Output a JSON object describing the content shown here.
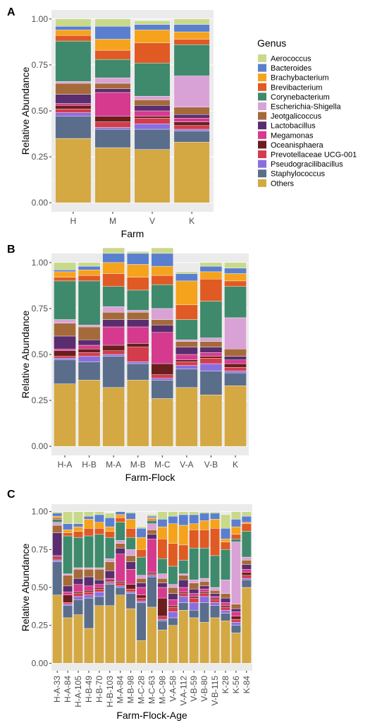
{
  "genera": [
    "Aerococcus",
    "Bacteroides",
    "Brachybacterium",
    "Brevibacterium",
    "Corynebacterium",
    "Escherichia-Shigella",
    "Jeotgalicoccus",
    "Lactobacillus",
    "Megamonas",
    "Oceanisphaera",
    "Prevotellaceae UCG-001",
    "Pseudogracilibacillus",
    "Staphylococcus",
    "Others"
  ],
  "colors": {
    "Aerococcus": "#c9d98a",
    "Bacteroides": "#5b7fcf",
    "Brachybacterium": "#f5a31c",
    "Brevibacterium": "#e05a24",
    "Corynebacterium": "#3f8a6c",
    "Escherichia-Shigella": "#d9a2d6",
    "Jeotgalicoccus": "#a56a3a",
    "Lactobacillus": "#5a2d6e",
    "Megamonas": "#d63a8f",
    "Oceanisphaera": "#6a1e1e",
    "Prevotellaceae UCG-001": "#d43c4c",
    "Pseudogracilibacillus": "#8a6ee0",
    "Staphylococcus": "#5a6e8c",
    "Others": "#d4a843"
  },
  "legend_title": "Genus",
  "chart_data": [
    {
      "panel": "A",
      "type": "bar",
      "stacked": true,
      "xlabel": "Farm",
      "ylabel": "Relative Abundance",
      "ylim": [
        0,
        1
      ],
      "yticks": [
        "0.00",
        "0.25",
        "0.50",
        "0.75",
        "1.00"
      ],
      "categories": [
        "H",
        "M",
        "V",
        "K"
      ],
      "series": [
        {
          "name": "Others",
          "values": [
            0.35,
            0.3,
            0.29,
            0.33
          ]
        },
        {
          "name": "Staphylococcus",
          "values": [
            0.12,
            0.1,
            0.11,
            0.06
          ]
        },
        {
          "name": "Pseudogracilibacillus",
          "values": [
            0.02,
            0.01,
            0.03,
            0.01
          ]
        },
        {
          "name": "Prevotellaceae UCG-001",
          "values": [
            0.02,
            0.03,
            0.03,
            0.02
          ]
        },
        {
          "name": "Oceanisphaera",
          "values": [
            0.02,
            0.03,
            0.01,
            0.02
          ]
        },
        {
          "name": "Megamonas",
          "values": [
            0.01,
            0.13,
            0.03,
            0.02
          ]
        },
        {
          "name": "Lactobacillus",
          "values": [
            0.05,
            0.02,
            0.03,
            0.02
          ]
        },
        {
          "name": "Jeotgalicoccus",
          "values": [
            0.06,
            0.03,
            0.03,
            0.04
          ]
        },
        {
          "name": "Escherichia-Shigella",
          "values": [
            0.01,
            0.03,
            0.02,
            0.17
          ]
        },
        {
          "name": "Corynebacterium",
          "values": [
            0.22,
            0.1,
            0.18,
            0.17
          ]
        },
        {
          "name": "Brevibacterium",
          "values": [
            0.03,
            0.05,
            0.11,
            0.03
          ]
        },
        {
          "name": "Brachybacterium",
          "values": [
            0.03,
            0.06,
            0.07,
            0.04
          ]
        },
        {
          "name": "Bacteroides",
          "values": [
            0.02,
            0.07,
            0.03,
            0.04
          ]
        },
        {
          "name": "Aerococcus",
          "values": [
            0.04,
            0.04,
            0.02,
            0.03
          ]
        }
      ]
    },
    {
      "panel": "B",
      "type": "bar",
      "stacked": true,
      "xlabel": "Farm-Flock",
      "ylabel": "Relative Abundance",
      "ylim": [
        0,
        1
      ],
      "yticks": [
        "0.00",
        "0.25",
        "0.50",
        "0.75",
        "1.00"
      ],
      "categories": [
        "H-A",
        "H-B",
        "M-A",
        "M-B",
        "M-C",
        "V-A",
        "V-B",
        "K"
      ],
      "series": [
        {
          "name": "Others",
          "values": [
            0.34,
            0.36,
            0.32,
            0.36,
            0.26,
            0.32,
            0.28,
            0.33
          ]
        },
        {
          "name": "Staphylococcus",
          "values": [
            0.13,
            0.1,
            0.17,
            0.09,
            0.1,
            0.1,
            0.13,
            0.07
          ]
        },
        {
          "name": "Pseudogracilibacillus",
          "values": [
            0.01,
            0.03,
            0.01,
            0.01,
            0.01,
            0.02,
            0.04,
            0.01
          ]
        },
        {
          "name": "Prevotellaceae UCG-001",
          "values": [
            0.01,
            0.02,
            0.02,
            0.08,
            0.02,
            0.02,
            0.03,
            0.02
          ]
        },
        {
          "name": "Oceanisphaera",
          "values": [
            0.03,
            0.02,
            0.03,
            0.02,
            0.06,
            0.01,
            0.01,
            0.02
          ]
        },
        {
          "name": "Megamonas",
          "values": [
            0.01,
            0.02,
            0.1,
            0.09,
            0.17,
            0.03,
            0.02,
            0.02
          ]
        },
        {
          "name": "Lactobacillus",
          "values": [
            0.07,
            0.03,
            0.04,
            0.04,
            0.04,
            0.04,
            0.03,
            0.02
          ]
        },
        {
          "name": "Jeotgalicoccus",
          "values": [
            0.07,
            0.07,
            0.04,
            0.04,
            0.03,
            0.03,
            0.03,
            0.04
          ]
        },
        {
          "name": "Escherichia-Shigella",
          "values": [
            0.02,
            0.01,
            0.03,
            0.01,
            0.06,
            0.01,
            0.02,
            0.17
          ]
        },
        {
          "name": "Corynebacterium",
          "values": [
            0.21,
            0.24,
            0.11,
            0.11,
            0.13,
            0.11,
            0.2,
            0.17
          ]
        },
        {
          "name": "Brevibacterium",
          "values": [
            0.02,
            0.03,
            0.07,
            0.07,
            0.05,
            0.08,
            0.12,
            0.03
          ]
        },
        {
          "name": "Brachybacterium",
          "values": [
            0.03,
            0.03,
            0.06,
            0.07,
            0.05,
            0.13,
            0.04,
            0.04
          ]
        },
        {
          "name": "Bacteroides",
          "values": [
            0.01,
            0.02,
            0.05,
            0.06,
            0.07,
            0.04,
            0.03,
            0.03
          ]
        },
        {
          "name": "Aerococcus",
          "values": [
            0.04,
            0.02,
            0.03,
            0.01,
            0.03,
            0.01,
            0.02,
            0.03
          ]
        }
      ]
    },
    {
      "panel": "C",
      "type": "bar",
      "stacked": true,
      "xlabel": "Farm-Flock-Age",
      "ylabel": "Relative Abundance",
      "ylim": [
        0,
        1
      ],
      "yticks": [
        "0.00",
        "0.25",
        "0.50",
        "0.75",
        "1.00"
      ],
      "categories": [
        "H-A-33",
        "H-A-84",
        "H-A-105",
        "H-B-49",
        "H-B-70",
        "H-B-103",
        "M-A-84",
        "M-B-98",
        "M-C-28",
        "M-C-63",
        "M-C-98",
        "V-A-58",
        "V-A-112",
        "V-B-59",
        "V-B-80",
        "V-B-115",
        "K-28",
        "K-56",
        "K-84"
      ],
      "series": [
        {
          "name": "Others",
          "values": [
            0.45,
            0.3,
            0.32,
            0.23,
            0.38,
            0.38,
            0.45,
            0.36,
            0.15,
            0.37,
            0.22,
            0.25,
            0.35,
            0.3,
            0.27,
            0.3,
            0.28,
            0.2,
            0.5
          ]
        },
        {
          "name": "Staphylococcus",
          "values": [
            0.22,
            0.08,
            0.1,
            0.2,
            0.06,
            0.14,
            0.05,
            0.1,
            0.25,
            0.2,
            0.06,
            0.05,
            0.05,
            0.05,
            0.13,
            0.08,
            0.05,
            0.05,
            0.05
          ]
        },
        {
          "name": "Pseudogracilibacillus",
          "values": [
            0.01,
            0.01,
            0.02,
            0.02,
            0.03,
            0.01,
            0.01,
            0.01,
            0.01,
            0.01,
            0.01,
            0.04,
            0.04,
            0.05,
            0.04,
            0.02,
            0.02,
            0.02,
            0.01
          ]
        },
        {
          "name": "Prevotellaceae UCG-001",
          "values": [
            0.01,
            0.01,
            0.02,
            0.02,
            0.02,
            0.01,
            0.02,
            0.02,
            0.02,
            0.01,
            0.02,
            0.03,
            0.02,
            0.03,
            0.02,
            0.02,
            0.02,
            0.02,
            0.02
          ]
        },
        {
          "name": "Oceanisphaera",
          "values": [
            0.01,
            0.05,
            0.01,
            0.01,
            0.01,
            0.01,
            0.01,
            0.03,
            0.02,
            0.01,
            0.12,
            0.01,
            0.01,
            0.01,
            0.01,
            0.01,
            0.01,
            0.02,
            0.02
          ]
        },
        {
          "name": "Megamonas",
          "values": [
            0.01,
            0.02,
            0.05,
            0.03,
            0.02,
            0.01,
            0.18,
            0.1,
            0.05,
            0.22,
            0.07,
            0.04,
            0.03,
            0.02,
            0.02,
            0.01,
            0.02,
            0.03,
            0.02
          ]
        },
        {
          "name": "Lactobacillus",
          "values": [
            0.15,
            0.04,
            0.04,
            0.06,
            0.03,
            0.05,
            0.04,
            0.05,
            0.03,
            0.03,
            0.03,
            0.04,
            0.05,
            0.03,
            0.02,
            0.02,
            0.03,
            0.02,
            0.03
          ]
        },
        {
          "name": "Jeotgalicoccus",
          "values": [
            0.05,
            0.07,
            0.06,
            0.05,
            0.07,
            0.06,
            0.03,
            0.04,
            0.03,
            0.03,
            0.03,
            0.04,
            0.03,
            0.04,
            0.03,
            0.02,
            0.03,
            0.03,
            0.03
          ]
        },
        {
          "name": "Escherichia-Shigella",
          "values": [
            0.02,
            0.01,
            0.01,
            0.01,
            0.01,
            0.02,
            0.02,
            0.04,
            0.02,
            0.04,
            0.03,
            0.02,
            0.01,
            0.02,
            0.02,
            0.02,
            0.09,
            0.41,
            0.02
          ]
        },
        {
          "name": "Corynebacterium",
          "values": [
            0.02,
            0.25,
            0.2,
            0.21,
            0.22,
            0.14,
            0.12,
            0.08,
            0.12,
            0.02,
            0.1,
            0.12,
            0.09,
            0.21,
            0.2,
            0.21,
            0.2,
            0.02,
            0.17
          ]
        },
        {
          "name": "Brevibacterium",
          "values": [
            0.01,
            0.02,
            0.04,
            0.05,
            0.04,
            0.04,
            0.03,
            0.06,
            0.05,
            0.01,
            0.13,
            0.15,
            0.1,
            0.12,
            0.12,
            0.18,
            0.05,
            0.03,
            0.05
          ]
        },
        {
          "name": "Brachybacterium",
          "values": [
            0.01,
            0.02,
            0.03,
            0.06,
            0.04,
            0.03,
            0.02,
            0.06,
            0.08,
            0.01,
            0.08,
            0.13,
            0.13,
            0.04,
            0.06,
            0.06,
            0.02,
            0.05,
            0.01
          ]
        },
        {
          "name": "Bacteroides",
          "values": [
            0.02,
            0.04,
            0.02,
            0.02,
            0.05,
            0.06,
            0.02,
            0.04,
            0.06,
            0.01,
            0.05,
            0.05,
            0.07,
            0.06,
            0.05,
            0.04,
            0.07,
            0.05,
            0.04
          ]
        },
        {
          "name": "Aerococcus",
          "values": [
            0.01,
            0.08,
            0.08,
            0.03,
            0.02,
            0.03,
            0.0,
            0.01,
            0.01,
            0.01,
            0.05,
            0.03,
            0.02,
            0.02,
            0.01,
            0.01,
            0.09,
            0.05,
            0.03
          ]
        }
      ]
    }
  ]
}
